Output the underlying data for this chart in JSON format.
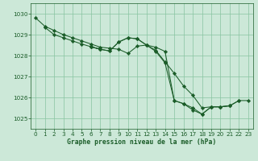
{
  "bg_color": "#cce8d8",
  "grid_color": "#88c4a0",
  "line_color": "#1a5c28",
  "marker_color": "#1a5c28",
  "xlabel": "Graphe pression niveau de la mer (hPa)",
  "xlabel_color": "#1a5c28",
  "tick_color": "#1a5c28",
  "ylim": [
    1024.5,
    1030.5
  ],
  "xlim": [
    -0.5,
    23.5
  ],
  "yticks": [
    1025,
    1026,
    1027,
    1028,
    1029,
    1030
  ],
  "xticks": [
    0,
    1,
    2,
    3,
    4,
    5,
    6,
    7,
    8,
    9,
    10,
    11,
    12,
    13,
    14,
    15,
    16,
    17,
    18,
    19,
    20,
    21,
    22,
    23
  ],
  "series": [
    [
      1029.8,
      1029.4,
      1029.2,
      1029.0,
      1028.85,
      1028.7,
      1028.55,
      1028.4,
      1028.35,
      1028.3,
      1028.1,
      1028.45,
      1028.5,
      1028.4,
      1028.2,
      1025.85,
      1025.7,
      1025.5,
      1025.2,
      1025.55,
      1025.55,
      1025.6,
      null,
      null
    ],
    [
      null,
      1029.35,
      1029.0,
      1028.85,
      1028.7,
      1028.55,
      1028.42,
      1028.3,
      null,
      null,
      null,
      null,
      null,
      null,
      null,
      null,
      null,
      null,
      null,
      null,
      null,
      null,
      null,
      null
    ],
    [
      null,
      null,
      null,
      null,
      null,
      null,
      1028.42,
      1028.3,
      1028.22,
      1028.65,
      1028.85,
      1028.8,
      1028.5,
      1028.25,
      1027.7,
      1027.15,
      1026.55,
      1026.1,
      1025.5,
      1025.55,
      1025.55,
      1025.6,
      1025.85,
      null
    ],
    [
      null,
      null,
      null,
      null,
      null,
      null,
      1028.42,
      1028.3,
      1028.22,
      1028.65,
      1028.85,
      1028.8,
      1028.5,
      1028.2,
      1027.65,
      1025.85,
      1025.7,
      1025.4,
      1025.2,
      1025.55,
      1025.55,
      1025.6,
      1025.85,
      1025.85
    ]
  ]
}
